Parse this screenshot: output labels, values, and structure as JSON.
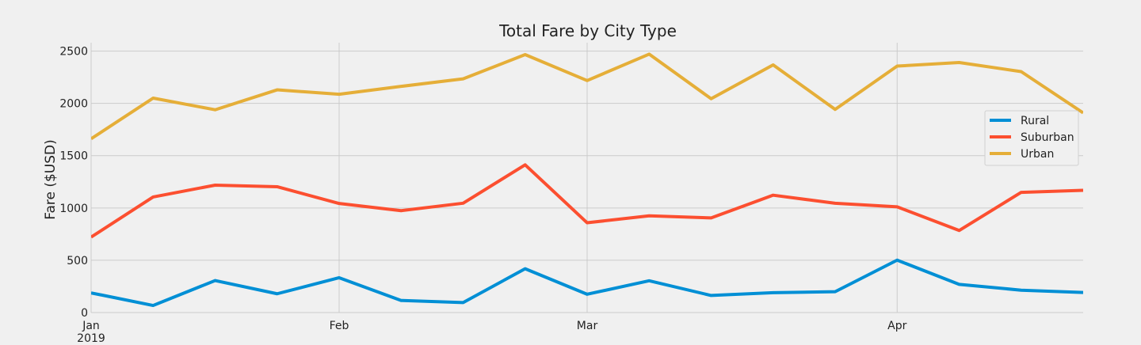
{
  "chart_data": {
    "type": "line",
    "title": "Total Fare by City Type",
    "xlabel": "",
    "ylabel": "Fare ($USD)",
    "ylim": [
      0,
      2580
    ],
    "yticks": [
      0,
      500,
      1000,
      1500,
      2000,
      2500
    ],
    "ytick_labels": [
      "0",
      "500",
      "1000",
      "1500",
      "2000",
      "2500"
    ],
    "x_weeks": [
      "2019-01-06",
      "2019-01-13",
      "2019-01-20",
      "2019-01-27",
      "2019-02-03",
      "2019-02-10",
      "2019-02-17",
      "2019-02-24",
      "2019-03-03",
      "2019-03-10",
      "2019-03-17",
      "2019-03-24",
      "2019-03-31",
      "2019-04-07",
      "2019-04-14",
      "2019-04-21",
      "2019-04-28"
    ],
    "xlim_weeks": [
      0,
      16
    ],
    "xticks": [
      {
        "label": "Jan",
        "week": 0
      },
      {
        "label": "Feb",
        "week": 4
      },
      {
        "label": "Mar",
        "week": 8
      },
      {
        "label": "Apr",
        "week": 13
      }
    ],
    "xtick_year_label": "2019",
    "grid": true,
    "legend_position": "center-right",
    "series": [
      {
        "name": "Rural",
        "color": "#008fd5",
        "values": [
          187.92,
          67.65,
          306.0,
          179.69,
          333.08,
          115.8,
          95.82,
          419.06,
          175.14,
          303.94,
          163.39,
          189.76,
          199.42,
          501.24,
          269.79,
          214.14,
          191.85
        ]
      },
      {
        "name": "Suburban",
        "color": "#fc4f30",
        "values": [
          721.6,
          1105.13,
          1218.2,
          1203.28,
          1042.79,
          974.34,
          1045.5,
          1412.74,
          858.46,
          925.27,
          905.2,
          1122.2,
          1045.06,
          1010.73,
          784.82,
          1149.27,
          1169.04
        ]
      },
      {
        "name": "Urban",
        "color": "#e5ae38",
        "values": [
          1661.68,
          2050.43,
          1939.02,
          2129.51,
          2086.94,
          2162.64,
          2235.07,
          2466.29,
          2218.2,
          2470.93,
          2044.42,
          2368.37,
          1942.33,
          2356.7,
          2390.72,
          2303.8,
          1909.51
        ]
      }
    ]
  }
}
